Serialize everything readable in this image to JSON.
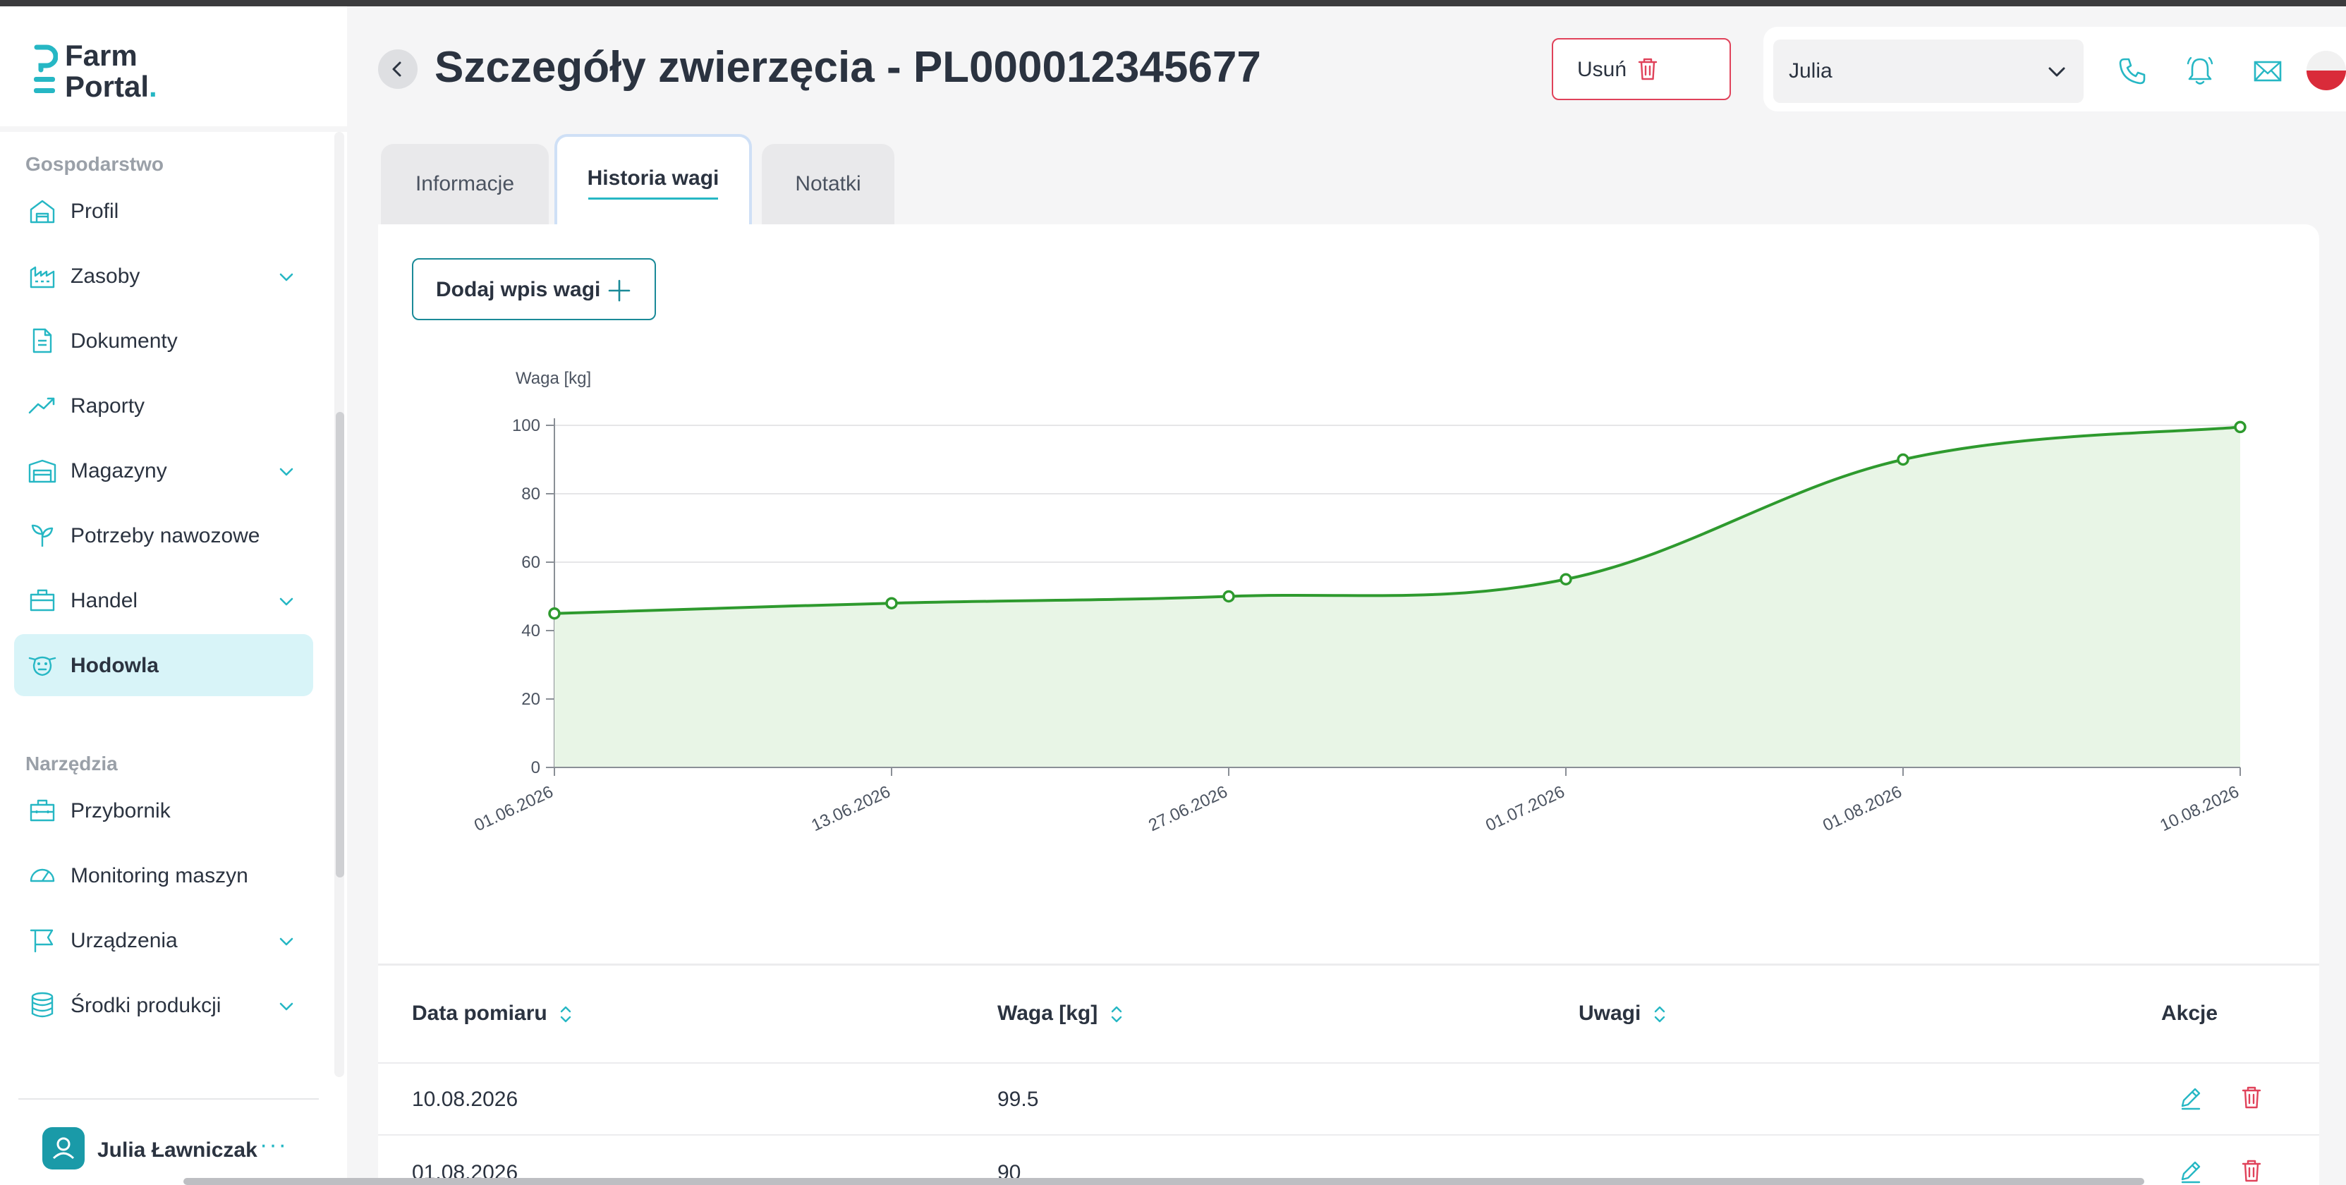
{
  "app": {
    "logo_line1": "Farm",
    "logo_line2": "Portal",
    "logo_dot": "."
  },
  "sidebar": {
    "sections": [
      {
        "title": "Gospodarstwo",
        "items": [
          {
            "label": "Profil",
            "icon": "barn-icon",
            "expandable": false
          },
          {
            "label": "Zasoby",
            "icon": "factory-icon",
            "expandable": true
          },
          {
            "label": "Dokumenty",
            "icon": "document-icon",
            "expandable": false
          },
          {
            "label": "Raporty",
            "icon": "trend-icon",
            "expandable": false
          },
          {
            "label": "Magazyny",
            "icon": "warehouse-icon",
            "expandable": true
          },
          {
            "label": "Potrzeby nawozowe",
            "icon": "sprout-icon",
            "expandable": false
          },
          {
            "label": "Handel",
            "icon": "briefcase-icon",
            "expandable": true
          },
          {
            "label": "Hodowla",
            "icon": "cow-icon",
            "expandable": false,
            "active": true
          }
        ]
      },
      {
        "title": "Narzędzia",
        "items": [
          {
            "label": "Przybornik",
            "icon": "toolbox-icon",
            "expandable": false
          },
          {
            "label": "Monitoring maszyn",
            "icon": "gauge-icon",
            "expandable": false
          },
          {
            "label": "Urządzenia",
            "icon": "flag-icon",
            "expandable": true
          },
          {
            "label": "Środki produkcji",
            "icon": "database-icon",
            "expandable": true
          }
        ]
      }
    ],
    "user": {
      "name": "Julia Ławniczak",
      "more": "···"
    }
  },
  "header": {
    "title": "Szczegóły zwierzęcia - PL000012345677",
    "delete_label": "Usuń",
    "user_select": "Julia",
    "icons": [
      "phone-icon",
      "bell-icon",
      "mail-icon",
      "language-flag-icon"
    ]
  },
  "tabs": [
    {
      "label": "Informacje",
      "active": false
    },
    {
      "label": "Historia wagi",
      "active": true
    },
    {
      "label": "Notatki",
      "active": false
    }
  ],
  "actions": {
    "add_weight_label": "Dodaj wpis wagi"
  },
  "colors": {
    "accent": "#26b7c4",
    "line": "#2e9a2e",
    "area": "#e8f5e6",
    "danger": "#e0425a"
  },
  "chart_data": {
    "type": "area",
    "ylabel": "Waga [kg]",
    "ylim": [
      0,
      100
    ],
    "yticks": [
      0,
      20,
      40,
      60,
      80,
      100
    ],
    "categories": [
      "01.06.2026",
      "13.06.2026",
      "27.06.2026",
      "01.07.2026",
      "01.08.2026",
      "10.08.2026"
    ],
    "series": [
      {
        "values": [
          45,
          48,
          50,
          55,
          90,
          99.5
        ]
      }
    ],
    "grid": true
  },
  "table": {
    "headers": [
      "Data pomiaru",
      "Waga [kg]",
      "Uwagi",
      "Akcje"
    ],
    "rows": [
      {
        "date": "10.08.2026",
        "weight": "99.5",
        "notes": ""
      },
      {
        "date": "01.08.2026",
        "weight": "90",
        "notes": ""
      }
    ]
  }
}
